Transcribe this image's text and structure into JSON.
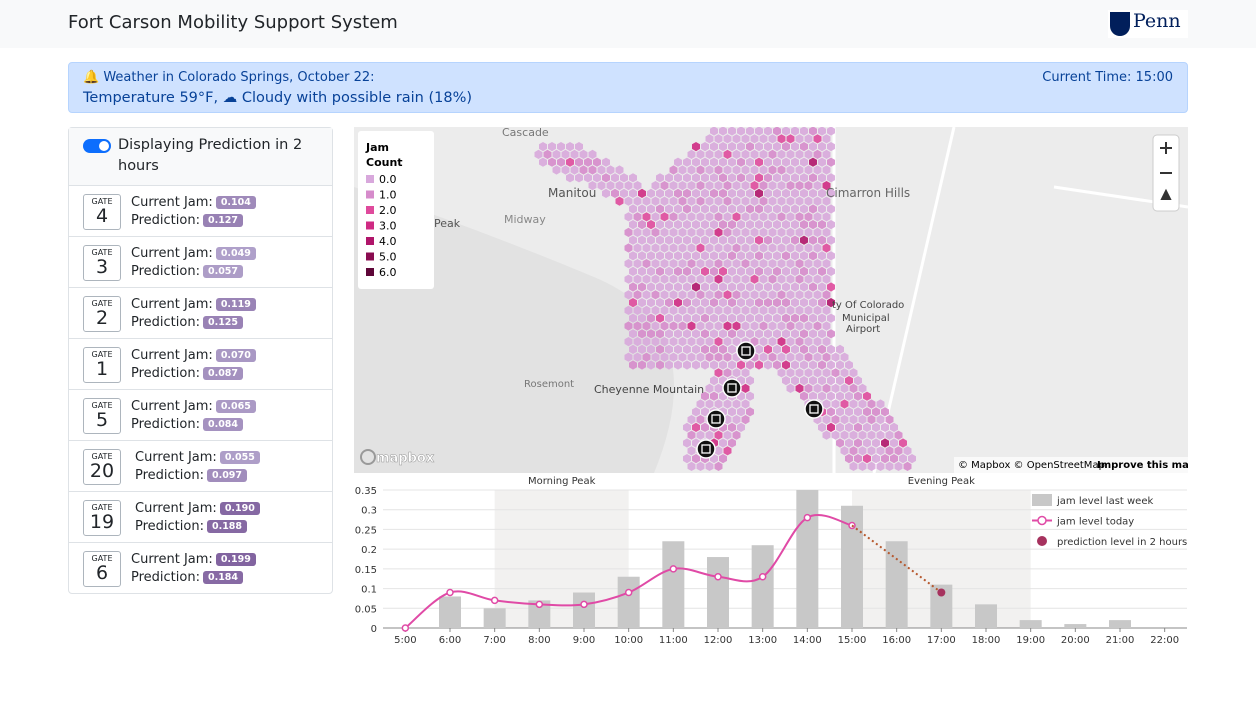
{
  "header": {
    "title": "Fort Carson Mobility Support System",
    "logo": "Penn"
  },
  "weather": {
    "heading": "Weather in Colorado Springs, October 22:",
    "time": "Current Time: 15:00",
    "temperature": "Temperature 59°F,",
    "condition": "Cloudy with possible rain (18%)"
  },
  "toggle": {
    "label": "Displaying Prediction in 2 hours"
  },
  "gates": [
    {
      "tag": "GATE",
      "number": "4",
      "current_label": "Current Jam:",
      "current": "0.104",
      "prediction_label": "Prediction:",
      "prediction": "0.127"
    },
    {
      "tag": "GATE",
      "number": "3",
      "current_label": "Current Jam:",
      "current": "0.049",
      "prediction_label": "Prediction:",
      "prediction": "0.057"
    },
    {
      "tag": "GATE",
      "number": "2",
      "current_label": "Current Jam:",
      "current": "0.119",
      "prediction_label": "Prediction:",
      "prediction": "0.125"
    },
    {
      "tag": "GATE",
      "number": "1",
      "current_label": "Current Jam:",
      "current": "0.070",
      "prediction_label": "Prediction:",
      "prediction": "0.087"
    },
    {
      "tag": "GATE",
      "number": "5",
      "current_label": "Current Jam:",
      "current": "0.065",
      "prediction_label": "Prediction:",
      "prediction": "0.084"
    },
    {
      "tag": "GATE",
      "number": "20",
      "current_label": "Current Jam:",
      "current": "0.055",
      "prediction_label": "Prediction:",
      "prediction": "0.097"
    },
    {
      "tag": "GATE",
      "number": "19",
      "current_label": "Current Jam:",
      "current": "0.190",
      "prediction_label": "Prediction:",
      "prediction": "0.188"
    },
    {
      "tag": "GATE",
      "number": "6",
      "current_label": "Current Jam:",
      "current": "0.199",
      "prediction_label": "Prediction:",
      "prediction": "0.184"
    }
  ],
  "map": {
    "legend_title": "Jam Count",
    "legend": [
      {
        "label": "0.0",
        "color": "#d8a8dc"
      },
      {
        "label": "1.0",
        "color": "#d68bcb"
      },
      {
        "label": "2.0",
        "color": "#df4a9c"
      },
      {
        "label": "3.0",
        "color": "#cf2a83"
      },
      {
        "label": "4.0",
        "color": "#b0156a"
      },
      {
        "label": "5.0",
        "color": "#8a0c50"
      },
      {
        "label": "6.0",
        "color": "#5e0638"
      }
    ],
    "places": [
      "Cascade",
      "Manitou",
      "Peak",
      "Midway",
      "Cimarron Hills",
      "ty Of Colorado",
      "Municipal",
      "Airport",
      "Rosemont",
      "Cheyenne Mountain"
    ],
    "attribution": "© Mapbox © OpenStreetMap",
    "improve": "Improve this map",
    "brand": "mapbox"
  },
  "chart_data": {
    "type": "bar",
    "categories": [
      "5:00",
      "6:00",
      "7:00",
      "8:00",
      "9:00",
      "10:00",
      "11:00",
      "12:00",
      "13:00",
      "14:00",
      "15:00",
      "16:00",
      "17:00",
      "18:00",
      "19:00",
      "20:00",
      "21:00",
      "22:00"
    ],
    "series": [
      {
        "name": "jam level last week",
        "type": "bar",
        "color": "#c8c8c8",
        "values": [
          null,
          0.08,
          0.05,
          0.07,
          0.09,
          0.13,
          0.22,
          0.18,
          0.21,
          0.35,
          0.31,
          0.22,
          0.11,
          0.06,
          0.02,
          0.01,
          0.02,
          null
        ]
      },
      {
        "name": "jam level today",
        "type": "line",
        "color": "#e04aa6",
        "values": [
          0,
          0.09,
          0.07,
          0.06,
          0.06,
          0.09,
          0.15,
          0.13,
          0.13,
          0.28,
          0.26,
          null,
          null,
          null,
          null,
          null,
          null,
          null
        ]
      },
      {
        "name": "prediction level in 2 hours",
        "type": "scatter",
        "color": "#a6325e",
        "values": [
          null,
          null,
          null,
          null,
          null,
          null,
          null,
          null,
          null,
          null,
          null,
          null,
          0.09,
          null,
          null,
          null,
          null,
          null
        ]
      }
    ],
    "bands": [
      {
        "label": "Morning Peak",
        "from": "7:00",
        "to": "10:00"
      },
      {
        "label": "Evening Peak",
        "from": "15:00",
        "to": "19:00"
      }
    ],
    "ylim": [
      0,
      0.35
    ],
    "yticks": [
      0,
      0.05,
      0.1,
      0.15,
      0.2,
      0.25,
      0.3,
      0.35
    ],
    "grid": true,
    "legend": "top-right"
  }
}
